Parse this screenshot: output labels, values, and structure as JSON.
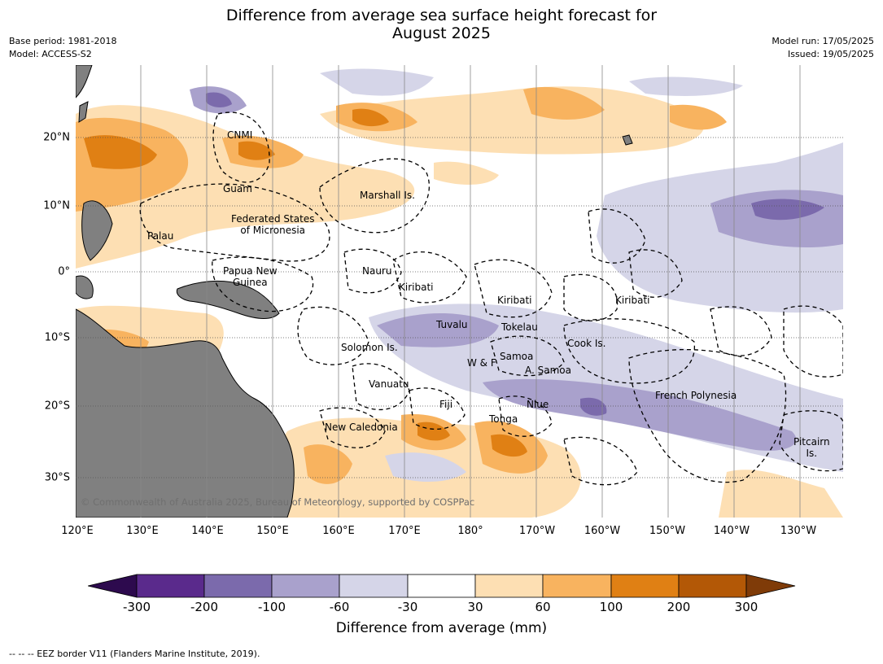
{
  "title_line1": "Difference from average sea surface height forecast for",
  "title_line2": "August 2025",
  "meta_left": {
    "base_period": "Base period: 1981-2018",
    "model": "Model: ACCESS-S2"
  },
  "meta_right": {
    "model_run": "Model run: 17/05/2025",
    "issued": "Issued: 19/05/2025"
  },
  "lon_labels": [
    "120°E",
    "130°E",
    "140°E",
    "150°E",
    "160°E",
    "170°E",
    "180°",
    "170°W",
    "160°W",
    "150°W",
    "140°W",
    "130°W"
  ],
  "lat_labels": [
    "20°N",
    "10°N",
    "0°",
    "10°S",
    "20°S",
    "30°S"
  ],
  "region_labels": {
    "cnmi": "CNMI",
    "guam": "Guam",
    "marshall": "Marshall Is.",
    "fsm": "Federated States\nof Micronesia",
    "palau": "Palau",
    "png": "Papua New\nGuinea",
    "nauru": "Nauru",
    "kiribati_w": "Kiribati",
    "kiribati_c": "Kiribati",
    "kiribati_e": "Kiribati",
    "tuvalu": "Tuvalu",
    "tokelau": "Tokelau",
    "cook": "Cook Is.",
    "solomon": "Solomon Is.",
    "samoa": "Samoa",
    "wf": "W & F",
    "asamoa": "A. Samoa",
    "vanuatu": "Vanuatu",
    "fiji": "Fiji",
    "niue": "Niue",
    "tonga": "Tonga",
    "frpoly": "French Polynesia",
    "newcal": "New Caledonia",
    "pitcairn": "Pitcairn\nIs."
  },
  "copyright": "© Commonwealth of Australia 2025, Bureau of Meteorology, supported by COSPPac",
  "colorbar": {
    "ticks": [
      "-300",
      "-200",
      "-100",
      "-60",
      "-30",
      "30",
      "60",
      "100",
      "200",
      "300"
    ],
    "colors": [
      "#2d0a4e",
      "#5a2a8c",
      "#7b6aac",
      "#a9a1cc",
      "#d5d5e8",
      "#ffffff",
      "#fddfb3",
      "#f8b35f",
      "#e08014",
      "#b35806",
      "#7f3b08"
    ],
    "title": "Difference from average (mm)"
  },
  "legend": "--  --  -- EEZ border V11 (Flanders Marine Institute, 2019)."
}
